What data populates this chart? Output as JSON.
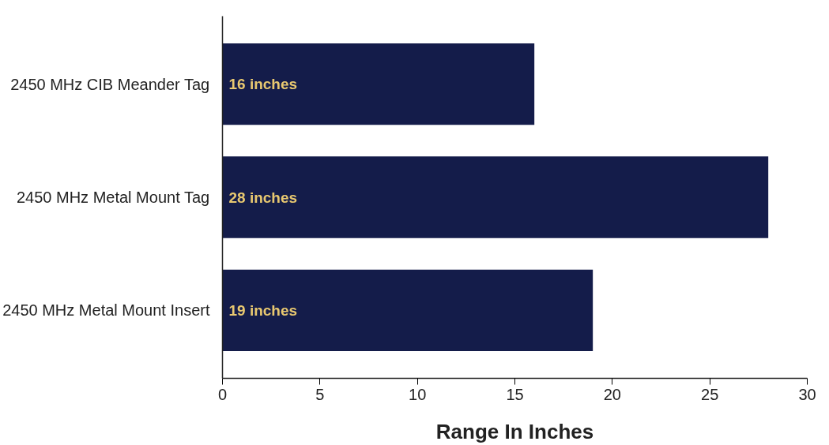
{
  "chart_data": {
    "type": "bar",
    "orientation": "horizontal",
    "xlabel": "Range In Inches",
    "categories": [
      "2450 MHz CIB Meander Tag",
      "2450 MHz Metal Mount Tag",
      "2450 MHz Metal Mount Insert"
    ],
    "values": [
      16,
      28,
      19
    ],
    "color": "#141c4a",
    "value_labels": [
      "16 inches",
      "28 inches",
      "19 inches"
    ],
    "xlim": [
      0,
      30
    ],
    "xticks": [
      0,
      5,
      10,
      15,
      20,
      25,
      30
    ],
    "grid": false
  }
}
